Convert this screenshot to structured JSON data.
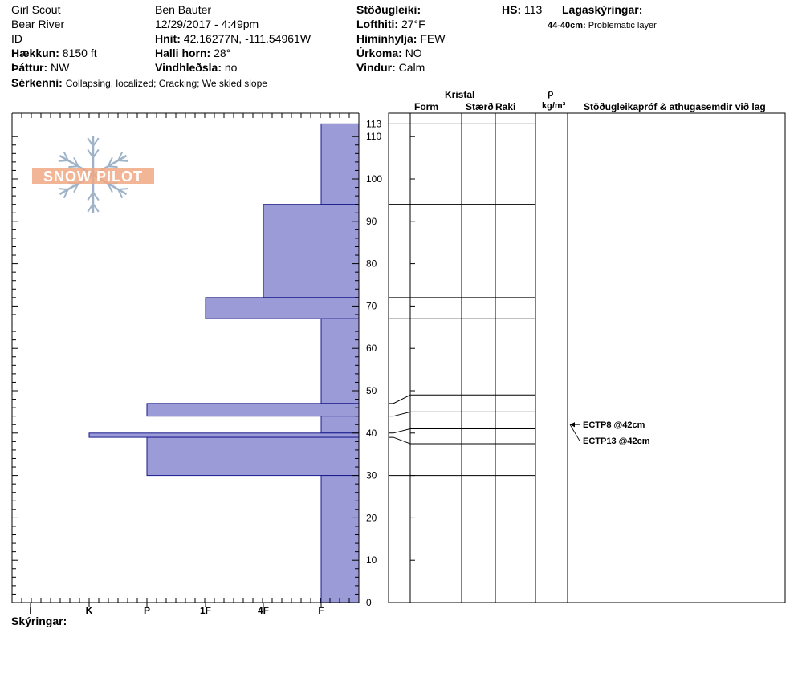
{
  "header": {
    "location_name": "Girl Scout",
    "area": "Bear River",
    "state": "ID",
    "elevation_label": "Hækkun:",
    "elevation": "8150 ft",
    "aspect_label": "Þáttur:",
    "aspect": "NW",
    "observer": "Ben Bauter",
    "datetime": "12/29/2017 - 4:49pm",
    "coords_label": "Hnit:",
    "coords": "42.16277N, -111.54961W",
    "slope_label": "Halli horn:",
    "slope": "28°",
    "wind_loading_label": "Vindhleðsla:",
    "wind_loading": "no",
    "stability_label": "Stöðugleiki:",
    "air_temp_label": "Lofthiti:",
    "air_temp": "27°F",
    "sky_label": "Himinhylja:",
    "sky": "FEW",
    "precip_label": "Úrkoma:",
    "precip": "NO",
    "wind_label": "Vindur:",
    "wind": "Calm",
    "hs_label": "HS:",
    "hs": "113",
    "layer_notes_label": "Lagaskýringar:",
    "layer_note_range": "44-40cm:",
    "layer_note_text": "Problematic layer",
    "features_label": "Sérkenni:",
    "features": "Collapsing, localized;  Cracking;  We skied slope"
  },
  "columns": {
    "crystal": "Kristal",
    "form": "Form",
    "size": "Stærð",
    "moisture": "Raki",
    "rho": "ρ",
    "density_unit": "kg/m³",
    "tests": "Stöðugleikapróf & athugasemdir við lag"
  },
  "footer": {
    "notes_label": "Skýringar:"
  },
  "logo": {
    "text": "SNOW PILOT"
  },
  "colors": {
    "hardness_fill": "#9b9bd7",
    "hardness_stroke": "#1a1a8c",
    "logo_orange": "#f0a882",
    "logo_blue": "#9fb3c8"
  },
  "chart_data": {
    "type": "bar",
    "orientation": "horizontal-profile",
    "xlabel": "",
    "ylabel": "",
    "hardness_ticks": [
      "I",
      "K",
      "P",
      "1F",
      "4F",
      "F"
    ],
    "ylim": [
      0,
      113
    ],
    "y_ticks": [
      0,
      10,
      20,
      30,
      40,
      50,
      60,
      70,
      80,
      90,
      100,
      110,
      113
    ],
    "layers": [
      {
        "top": 113,
        "bottom": 94,
        "hardness": "F"
      },
      {
        "top": 94,
        "bottom": 72,
        "hardness": "4F"
      },
      {
        "top": 72,
        "bottom": 67,
        "hardness": "1F"
      },
      {
        "top": 67,
        "bottom": 47,
        "hardness": "F"
      },
      {
        "top": 47,
        "bottom": 44,
        "hardness": "P"
      },
      {
        "top": 44,
        "bottom": 40,
        "hardness": "F"
      },
      {
        "top": 40,
        "bottom": 39,
        "hardness": "K"
      },
      {
        "top": 39,
        "bottom": 30,
        "hardness": "P"
      },
      {
        "top": 30,
        "bottom": 0,
        "hardness": "F"
      }
    ],
    "grid_lines": [
      113,
      94,
      72,
      67,
      49,
      45,
      41,
      37.5,
      30
    ],
    "boundary_connectors": [
      {
        "profile": 47,
        "grid": 49
      },
      {
        "profile": 44,
        "grid": 45
      },
      {
        "profile": 40,
        "grid": 41
      },
      {
        "profile": 39,
        "grid": 37.5
      }
    ],
    "tests": [
      {
        "label": "ECTP8 @42cm",
        "depth": 42
      },
      {
        "label": "ECTP13 @42cm",
        "depth": 42
      }
    ]
  }
}
